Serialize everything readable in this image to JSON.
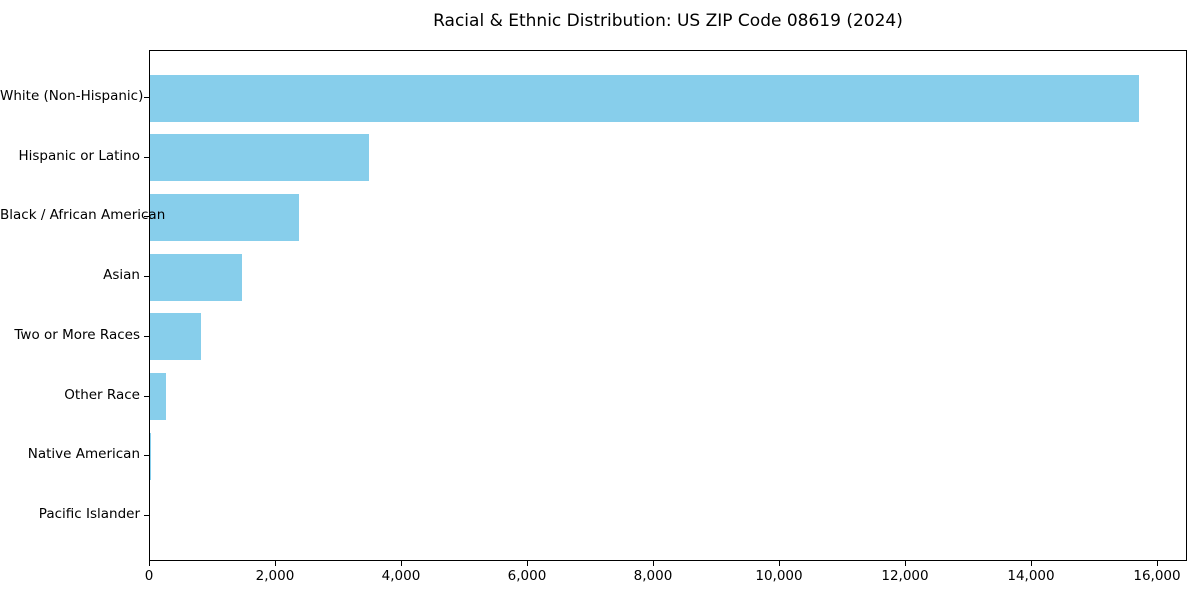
{
  "title": "Racial & Ethnic Distribution: US ZIP Code 08619 (2024)",
  "chart_data": {
    "type": "bar",
    "orientation": "horizontal",
    "title": "Racial & Ethnic Distribution: US ZIP Code 08619 (2024)",
    "categories": [
      "White (Non-Hispanic)",
      "Hispanic or Latino",
      "Black / African American",
      "Asian",
      "Two or More Races",
      "Other Race",
      "Native American",
      "Pacific Islander"
    ],
    "values": [
      15700,
      3480,
      2370,
      1460,
      810,
      250,
      15,
      5
    ],
    "xlabel": "",
    "ylabel": "",
    "xlim": [
      0,
      16480
    ],
    "xticks": [
      0,
      2000,
      4000,
      6000,
      8000,
      10000,
      12000,
      14000,
      16000
    ],
    "xtick_labels": [
      "0",
      "2,000",
      "4,000",
      "6,000",
      "8,000",
      "10,000",
      "12,000",
      "14,000",
      "16,000"
    ],
    "bar_color": "#87CEEB",
    "axis_color": "#000000",
    "grid": false,
    "legend": null
  }
}
